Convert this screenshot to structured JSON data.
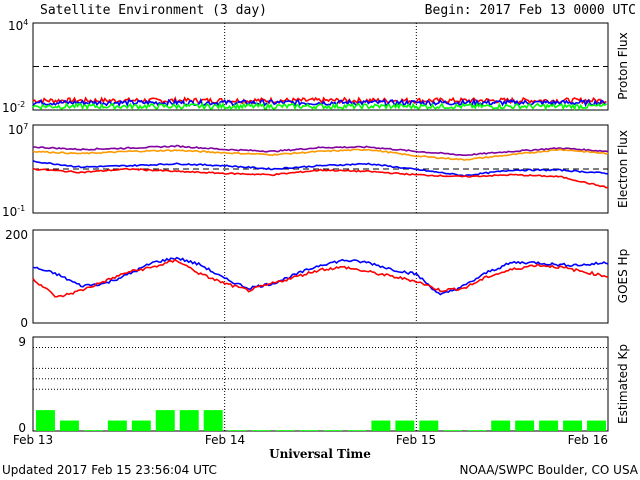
{
  "header": {
    "title": "Satellite Environment (3 day)",
    "begin": "Begin:  2017 Feb 13 0000 UTC"
  },
  "footer": {
    "updated": "Updated 2017 Feb 15 23:56:04 UTC",
    "credit": "NOAA/SWPC Boulder, CO USA"
  },
  "x_axis": {
    "label": "Universal Time",
    "ticks": [
      "Feb 13",
      "Feb 14",
      "Feb 15",
      "Feb 16"
    ]
  },
  "chart_data": [
    {
      "type": "line",
      "name": "proton-flux",
      "ylabel": "Proton Flux",
      "y_scale": "log",
      "ylim": [
        0.01,
        10000
      ],
      "tick_labels": {
        "top": {
          "base": "10",
          "exp": "4"
        },
        "bottom": {
          "base": "10",
          "exp": "-2"
        }
      },
      "reference_line": 10,
      "xlim_hours": [
        0,
        72
      ],
      "series": [
        {
          "color": "#ff0000",
          "level": 0.045
        },
        {
          "color": "#0000ff",
          "level": 0.032
        },
        {
          "color": "#00ff00",
          "level": 0.018
        }
      ]
    },
    {
      "type": "line",
      "name": "electron-flux",
      "ylabel": "Electron Flux",
      "y_scale": "log",
      "ylim": [
        0.1,
        10000000
      ],
      "tick_labels": {
        "top": {
          "base": "10",
          "exp": "7"
        },
        "bottom": {
          "base": "10",
          "exp": "-1"
        }
      },
      "reference_line": 1000,
      "xlim_hours": [
        0,
        72
      ],
      "series": [
        {
          "color": "#8000a0",
          "points": [
            [
              0,
              100000
            ],
            [
              6,
              60000
            ],
            [
              12,
              80000
            ],
            [
              18,
              120000
            ],
            [
              24,
              60000
            ],
            [
              30,
              40000
            ],
            [
              36,
              90000
            ],
            [
              42,
              100000
            ],
            [
              48,
              40000
            ],
            [
              54,
              18000
            ],
            [
              60,
              40000
            ],
            [
              66,
              80000
            ],
            [
              72,
              40000
            ]
          ]
        },
        {
          "color": "#ff9900",
          "points": [
            [
              0,
              40000
            ],
            [
              6,
              25000
            ],
            [
              12,
              40000
            ],
            [
              18,
              50000
            ],
            [
              24,
              30000
            ],
            [
              30,
              20000
            ],
            [
              36,
              40000
            ],
            [
              42,
              60000
            ],
            [
              48,
              15000
            ],
            [
              54,
              7000
            ],
            [
              60,
              20000
            ],
            [
              66,
              60000
            ],
            [
              72,
              25000
            ]
          ]
        },
        {
          "color": "#0000ff",
          "points": [
            [
              0,
              5000
            ],
            [
              6,
              1500
            ],
            [
              12,
              2000
            ],
            [
              18,
              3000
            ],
            [
              24,
              2000
            ],
            [
              30,
              1000
            ],
            [
              36,
              2000
            ],
            [
              42,
              3000
            ],
            [
              48,
              900
            ],
            [
              54,
              250
            ],
            [
              60,
              800
            ],
            [
              66,
              800
            ],
            [
              72,
              400
            ]
          ]
        },
        {
          "color": "#ff0000",
          "points": [
            [
              0,
              1000
            ],
            [
              6,
              500
            ],
            [
              12,
              1000
            ],
            [
              18,
              600
            ],
            [
              24,
              400
            ],
            [
              30,
              300
            ],
            [
              36,
              800
            ],
            [
              42,
              600
            ],
            [
              48,
              300
            ],
            [
              54,
              200
            ],
            [
              60,
              300
            ],
            [
              66,
              200
            ],
            [
              72,
              20
            ]
          ]
        }
      ]
    },
    {
      "type": "line",
      "name": "goes-hp",
      "ylabel": "GOES Hp",
      "y_scale": "linear",
      "ylim": [
        0,
        200
      ],
      "tick_labels": {
        "top": "200",
        "bottom": "0"
      },
      "xlim_hours": [
        0,
        72
      ],
      "series": [
        {
          "color": "#0000ff",
          "points": [
            [
              0,
              120
            ],
            [
              3,
              105
            ],
            [
              6,
              80
            ],
            [
              9,
              85
            ],
            [
              12,
              105
            ],
            [
              15,
              130
            ],
            [
              18,
              140
            ],
            [
              21,
              125
            ],
            [
              24,
              95
            ],
            [
              27,
              75
            ],
            [
              30,
              85
            ],
            [
              33,
              105
            ],
            [
              36,
              125
            ],
            [
              39,
              135
            ],
            [
              42,
              130
            ],
            [
              45,
              115
            ],
            [
              48,
              105
            ],
            [
              51,
              60
            ],
            [
              54,
              80
            ],
            [
              57,
              110
            ],
            [
              60,
              130
            ],
            [
              63,
              130
            ],
            [
              66,
              125
            ],
            [
              69,
              125
            ],
            [
              72,
              130
            ]
          ]
        },
        {
          "color": "#ff0000",
          "points": [
            [
              0,
              95
            ],
            [
              3,
              55
            ],
            [
              6,
              70
            ],
            [
              9,
              90
            ],
            [
              12,
              110
            ],
            [
              15,
              120
            ],
            [
              18,
              135
            ],
            [
              21,
              105
            ],
            [
              24,
              85
            ],
            [
              27,
              70
            ],
            [
              30,
              85
            ],
            [
              33,
              100
            ],
            [
              36,
              115
            ],
            [
              39,
              120
            ],
            [
              42,
              110
            ],
            [
              45,
              100
            ],
            [
              48,
              90
            ],
            [
              51,
              70
            ],
            [
              54,
              75
            ],
            [
              57,
              100
            ],
            [
              60,
              115
            ],
            [
              63,
              125
            ],
            [
              66,
              120
            ],
            [
              69,
              110
            ],
            [
              72,
              100
            ]
          ]
        }
      ]
    },
    {
      "type": "bar",
      "name": "estimated-kp",
      "ylabel": "Estimated Kp",
      "ylim": [
        0,
        9
      ],
      "tick_labels": {
        "top": "9",
        "bottom": "0"
      },
      "gridlines": [
        4,
        5,
        6,
        8
      ],
      "color": "#00ff00",
      "bin_hours": 3,
      "values": [
        2,
        1,
        0,
        1,
        1,
        2,
        2,
        2,
        0,
        0,
        0,
        0,
        0,
        0,
        1,
        1,
        1,
        0,
        0,
        1,
        1,
        1,
        1,
        1
      ]
    }
  ]
}
